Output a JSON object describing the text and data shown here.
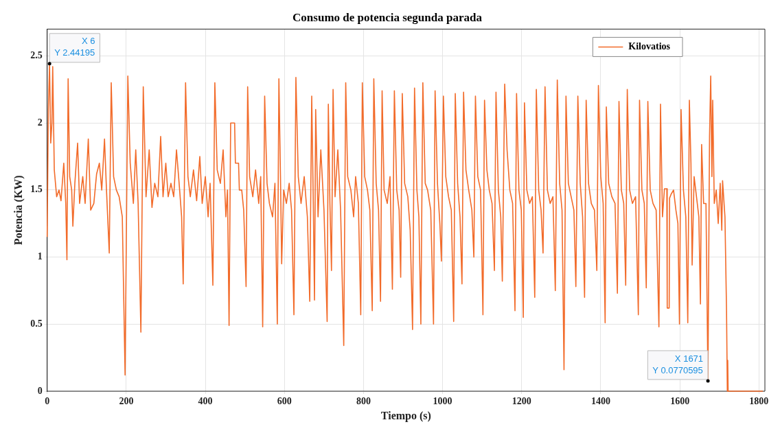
{
  "chart_data": {
    "type": "line",
    "title": "Consumo de potencia segunda parada",
    "xlabel": "Tiempo (s)",
    "ylabel": "Potencia (KW)",
    "xlim": [
      0,
      1815
    ],
    "xticks": [
      0,
      200,
      400,
      600,
      800,
      1000,
      1200,
      1400,
      1600,
      1800
    ],
    "ylim": [
      0,
      2.7
    ],
    "yticks": [
      0,
      0.5,
      1,
      1.5,
      2,
      2.5
    ],
    "grid": true,
    "legend": "top right",
    "x": [
      0,
      3,
      6,
      9,
      12,
      14,
      18,
      24,
      30,
      35,
      42,
      47,
      50,
      53,
      57,
      62,
      65,
      70,
      77,
      82,
      90,
      96,
      104,
      110,
      118,
      125,
      132,
      138,
      145,
      150,
      157,
      162,
      168,
      175,
      182,
      190,
      197,
      204,
      210,
      218,
      224,
      230,
      237,
      243,
      250,
      258,
      265,
      272,
      280,
      287,
      293,
      300,
      306,
      313,
      320,
      327,
      335,
      340,
      344,
      350,
      356,
      362,
      370,
      378,
      386,
      392,
      400,
      407,
      412,
      419,
      424,
      430,
      438,
      445,
      452,
      456,
      460,
      464,
      474,
      476,
      484,
      486,
      492,
      497,
      503,
      507,
      512,
      520,
      527,
      535,
      540,
      545,
      550,
      556,
      562,
      570,
      576,
      582,
      586,
      590,
      593,
      598,
      605,
      612,
      618,
      624,
      629,
      635,
      642,
      650,
      658,
      664,
      669,
      673,
      676,
      679,
      685,
      692,
      700,
      708,
      711,
      715,
      719,
      723,
      728,
      735,
      742,
      750,
      755,
      760,
      768,
      775,
      780,
      787,
      793,
      797,
      803,
      810,
      816,
      822,
      826,
      832,
      838,
      843,
      847,
      852,
      860,
      867,
      873,
      878,
      884,
      890,
      894,
      898,
      904,
      912,
      918,
      924,
      929,
      935,
      940,
      945,
      950,
      956,
      962,
      970,
      977,
      981,
      987,
      993,
      997,
      1002,
      1008,
      1015,
      1022,
      1028,
      1032,
      1038,
      1044,
      1049,
      1053,
      1059,
      1066,
      1074,
      1079,
      1083,
      1089,
      1096,
      1102,
      1106,
      1112,
      1118,
      1125,
      1131,
      1135,
      1141,
      1147,
      1151,
      1157,
      1163,
      1170,
      1177,
      1183,
      1187,
      1193,
      1199,
      1204,
      1207,
      1213,
      1220,
      1227,
      1233,
      1237,
      1243,
      1249,
      1254,
      1259,
      1265,
      1272,
      1279,
      1285,
      1290,
      1296,
      1302,
      1307,
      1312,
      1318,
      1325,
      1332,
      1337,
      1342,
      1348,
      1354,
      1359,
      1363,
      1369,
      1376,
      1384,
      1390,
      1394,
      1400,
      1406,
      1411,
      1414,
      1420,
      1428,
      1436,
      1442,
      1446,
      1452,
      1458,
      1463,
      1467,
      1473,
      1480,
      1488,
      1495,
      1498,
      1504,
      1510,
      1515,
      1519,
      1525,
      1532,
      1540,
      1547,
      1551,
      1556,
      1561,
      1567,
      1568,
      1573,
      1574,
      1578,
      1584,
      1590,
      1595,
      1599,
      1603,
      1609,
      1615,
      1620,
      1624,
      1628,
      1631,
      1636,
      1642,
      1648,
      1652,
      1655,
      1660,
      1666,
      1671,
      1675,
      1678,
      1681,
      1683,
      1687,
      1692,
      1697,
      1702,
      1706,
      1708,
      1714,
      1718,
      1720,
      1721,
      1722,
      1810
    ],
    "series": [
      {
        "name": "Kilovatios",
        "color": "#f26b2a",
        "values": [
          1.15,
          2.1,
          2.44195,
          1.85,
          2.0,
          2.42,
          1.65,
          1.45,
          1.5,
          1.42,
          1.7,
          1.4,
          0.98,
          2.33,
          1.6,
          1.5,
          1.23,
          1.55,
          1.85,
          1.4,
          1.6,
          1.4,
          1.88,
          1.35,
          1.4,
          1.62,
          1.7,
          1.5,
          1.88,
          1.5,
          1.03,
          2.3,
          1.6,
          1.5,
          1.45,
          1.3,
          0.12,
          2.35,
          1.7,
          1.4,
          1.8,
          1.4,
          0.44,
          2.27,
          1.45,
          1.8,
          1.37,
          1.55,
          1.45,
          1.9,
          1.45,
          1.7,
          1.45,
          1.55,
          1.45,
          1.8,
          1.5,
          1.3,
          0.8,
          2.3,
          1.6,
          1.45,
          1.65,
          1.42,
          1.75,
          1.4,
          1.6,
          1.3,
          1.55,
          0.79,
          2.3,
          1.65,
          1.55,
          1.8,
          1.3,
          1.5,
          0.49,
          2.0,
          2.0,
          1.7,
          1.7,
          1.5,
          1.5,
          1.35,
          0.78,
          2.27,
          1.6,
          1.45,
          1.65,
          1.4,
          1.6,
          0.48,
          2.2,
          1.55,
          1.4,
          1.3,
          1.55,
          0.5,
          2.33,
          1.6,
          0.95,
          1.5,
          1.4,
          1.55,
          1.35,
          0.57,
          2.34,
          1.6,
          1.4,
          1.6,
          1.3,
          0.67,
          2.2,
          1.4,
          0.68,
          2.1,
          1.3,
          1.8,
          1.35,
          0.52,
          2.14,
          1.4,
          0.9,
          2.25,
          1.45,
          1.8,
          1.35,
          0.34,
          2.3,
          1.6,
          1.5,
          1.3,
          1.6,
          1.4,
          0.57,
          2.3,
          1.6,
          1.5,
          1.35,
          0.6,
          2.33,
          1.55,
          1.35,
          0.67,
          2.24,
          1.5,
          1.4,
          1.6,
          0.76,
          2.24,
          1.5,
          1.35,
          0.85,
          2.22,
          1.55,
          1.45,
          1.2,
          0.46,
          2.26,
          1.5,
          1.3,
          0.5,
          2.3,
          1.55,
          1.5,
          1.35,
          0.5,
          2.24,
          1.55,
          1.25,
          0.97,
          2.2,
          1.6,
          1.45,
          1.35,
          0.52,
          2.22,
          1.55,
          1.3,
          0.8,
          2.23,
          1.65,
          1.5,
          1.35,
          1.0,
          2.2,
          1.6,
          1.5,
          0.57,
          2.17,
          1.65,
          1.5,
          1.4,
          0.9,
          2.23,
          1.5,
          1.3,
          0.82,
          2.29,
          1.8,
          1.5,
          1.4,
          0.6,
          2.22,
          1.5,
          1.35,
          0.55,
          2.15,
          1.5,
          1.4,
          1.45,
          0.7,
          2.25,
          1.5,
          1.35,
          1.03,
          2.27,
          1.5,
          1.4,
          1.45,
          0.75,
          2.32,
          1.55,
          1.35,
          0.16,
          2.2,
          1.55,
          1.45,
          1.35,
          0.78,
          2.2,
          1.55,
          1.3,
          0.7,
          2.17,
          1.55,
          1.4,
          1.35,
          0.9,
          2.28,
          1.6,
          1.4,
          0.51,
          2.12,
          1.55,
          1.45,
          1.4,
          0.73,
          2.16,
          1.5,
          1.4,
          0.79,
          2.25,
          1.5,
          1.4,
          1.45,
          0.57,
          2.17,
          1.5,
          1.4,
          0.77,
          2.16,
          1.5,
          1.4,
          1.35,
          0.48,
          2.14,
          1.3,
          1.51,
          1.51,
          0.62,
          0.62,
          1.44,
          1.47,
          1.5,
          1.35,
          1.25,
          0.5,
          2.1,
          1.5,
          1.3,
          0.51,
          2.17,
          1.7,
          0.94,
          1.6,
          1.45,
          1.3,
          0.65,
          1.84,
          1.4,
          1.4,
          0.0770595,
          1.9,
          2.35,
          1.6,
          2.17,
          1.4,
          1.5,
          1.25,
          1.55,
          1.2,
          1.57,
          1.3,
          0.6,
          0,
          0.23,
          0,
          0
        ]
      }
    ],
    "annotations": [
      {
        "text": "X 6\nY 2.44195",
        "x": 6,
        "y": 2.44195
      },
      {
        "text": "X 1671\nY 0.0770595",
        "x": 1671,
        "y": 0.0770595
      }
    ]
  }
}
